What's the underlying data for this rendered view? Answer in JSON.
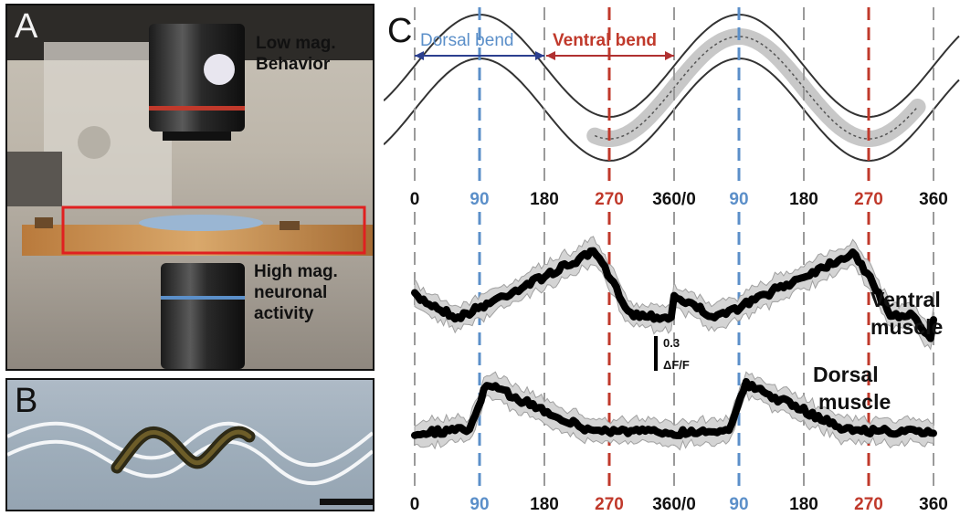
{
  "panel_a": {
    "letter": "A",
    "low_mag_label": [
      "Low mag.",
      "Behavior"
    ],
    "high_mag_label": [
      "High mag.",
      "neuronal",
      "activity"
    ]
  },
  "panel_b": {
    "letter": "B"
  },
  "panel_c": {
    "letter": "C",
    "dorsal_bend_label": "Dorsal bend",
    "ventral_bend_label": "Ventral bend",
    "ventral_muscle_label": [
      "Ventral",
      "muscle"
    ],
    "dorsal_muscle_label": [
      "Dorsal",
      "muscle"
    ],
    "scale_value": "0.3",
    "scale_unit": "ΔF/F",
    "phase_ticks": [
      "0",
      "90",
      "180",
      "270",
      "360/0",
      "90",
      "180",
      "270",
      "360"
    ],
    "colors": {
      "dorsal": "#5b8fc9",
      "ventral": "#c0392b",
      "gray_line": "#9a9a9a",
      "arrow_dorsal": "#2b3f8f"
    }
  }
}
